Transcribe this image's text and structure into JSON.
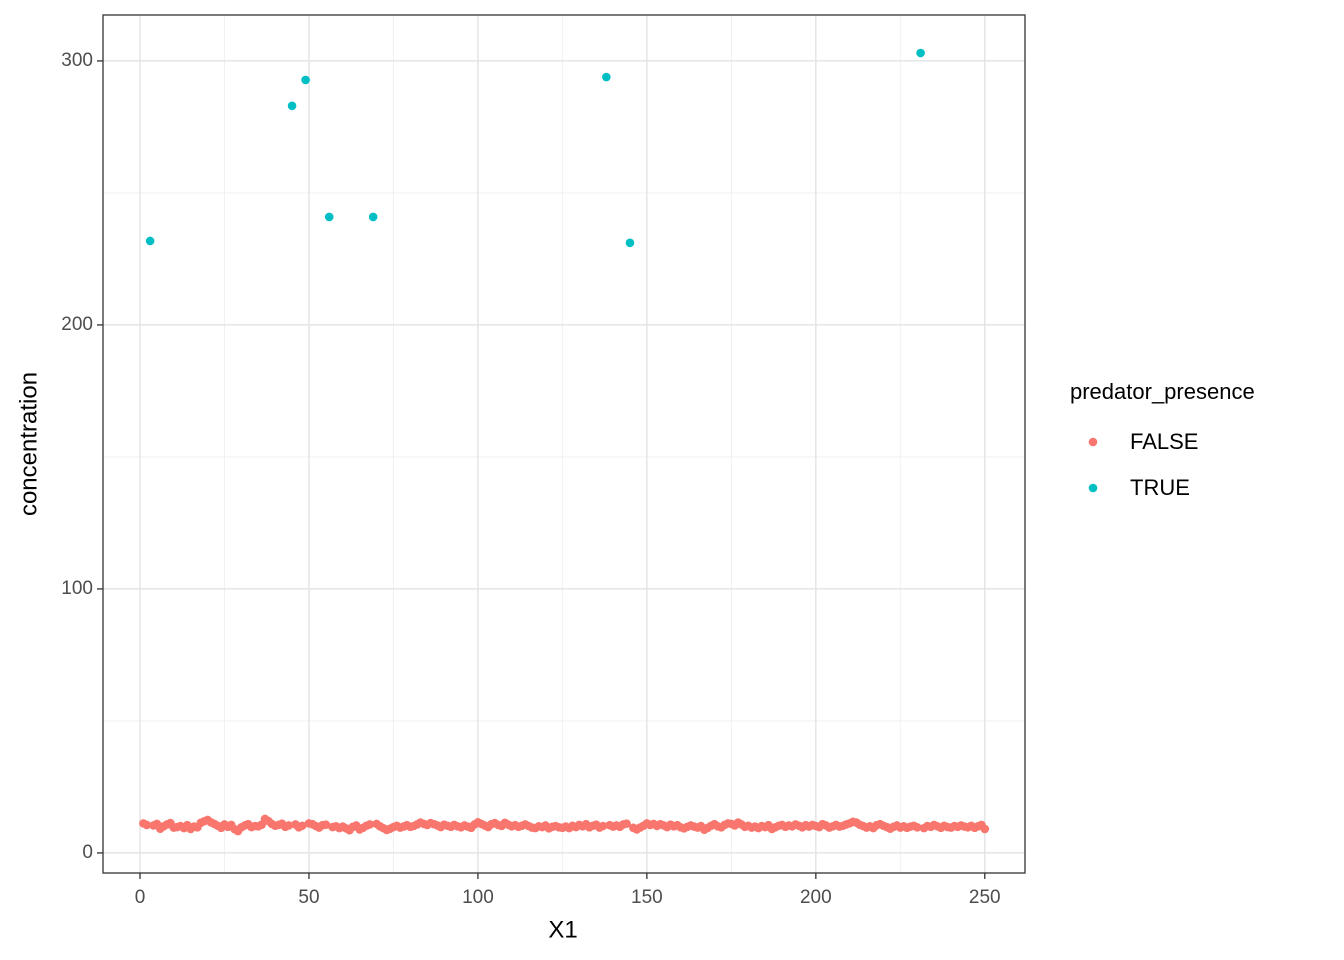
{
  "chart_data": {
    "type": "scatter",
    "x_label": "X1",
    "y_label": "concentration",
    "legend_title": "predator_presence",
    "legend_position": "right",
    "grid": true,
    "xlim": [
      -10.95,
      261.9
    ],
    "ylim": [
      -7.6,
      317.4
    ],
    "xticks": [
      0,
      50,
      100,
      150,
      200,
      250
    ],
    "yticks": [
      0,
      100,
      200,
      300
    ],
    "x_minor_ticks": [
      25,
      75,
      125,
      175,
      225
    ],
    "y_minor_ticks": [
      50,
      150,
      250
    ],
    "series": [
      {
        "name": "FALSE",
        "color": "#F8766D",
        "x": [
          1,
          2,
          4,
          5,
          6,
          7,
          8,
          9,
          10,
          11,
          12,
          13,
          14,
          15,
          16,
          17,
          18,
          19,
          20,
          21,
          22,
          23,
          24,
          25,
          26,
          27,
          28,
          29,
          30,
          31,
          32,
          33,
          34,
          35,
          36,
          37,
          38,
          39,
          40,
          41,
          42,
          43,
          44,
          46,
          47,
          48,
          50,
          51,
          52,
          53,
          54,
          55,
          57,
          58,
          59,
          60,
          61,
          62,
          63,
          64,
          65,
          66,
          67,
          68,
          70,
          71,
          72,
          73,
          74,
          75,
          76,
          77,
          78,
          79,
          80,
          81,
          82,
          83,
          84,
          85,
          86,
          87,
          88,
          89,
          90,
          91,
          92,
          93,
          94,
          95,
          96,
          97,
          98,
          99,
          100,
          101,
          102,
          103,
          104,
          105,
          106,
          107,
          108,
          109,
          110,
          111,
          112,
          113,
          114,
          115,
          116,
          117,
          118,
          119,
          120,
          121,
          122,
          123,
          124,
          125,
          126,
          127,
          128,
          129,
          130,
          131,
          132,
          133,
          134,
          135,
          136,
          137,
          139,
          140,
          141,
          142,
          143,
          144,
          146,
          147,
          148,
          149,
          150,
          151,
          152,
          153,
          154,
          155,
          156,
          157,
          158,
          159,
          160,
          161,
          162,
          163,
          164,
          165,
          166,
          167,
          168,
          169,
          170,
          171,
          172,
          173,
          174,
          175,
          176,
          177,
          178,
          179,
          180,
          181,
          182,
          183,
          184,
          185,
          186,
          187,
          188,
          189,
          190,
          191,
          192,
          193,
          194,
          195,
          196,
          197,
          198,
          199,
          200,
          201,
          202,
          203,
          204,
          205,
          206,
          207,
          208,
          209,
          210,
          211,
          212,
          213,
          214,
          215,
          216,
          217,
          218,
          219,
          220,
          221,
          222,
          223,
          224,
          225,
          226,
          227,
          228,
          229,
          230,
          232,
          233,
          234,
          235,
          236,
          237,
          238,
          239,
          240,
          241,
          242,
          243,
          244,
          245,
          246,
          247,
          248,
          249,
          250
        ],
        "values": [
          11.2,
          10.6,
          10.4,
          11.0,
          9.2,
          10.1,
          10.8,
          11.3,
          9.6,
          9.8,
          10.2,
          9.4,
          10.5,
          9.1,
          10.0,
          9.7,
          11.4,
          12.0,
          12.5,
          11.6,
          11.0,
          10.3,
          9.5,
          10.8,
          9.9,
          10.6,
          9.0,
          8.3,
          9.7,
          10.4,
          10.9,
          9.8,
          10.2,
          10.1,
          10.7,
          12.9,
          12.1,
          11.0,
          10.3,
          10.6,
          11.1,
          9.9,
          10.4,
          10.8,
          9.7,
          10.3,
          11.2,
          10.9,
          10.2,
          9.6,
          10.5,
          10.7,
          9.8,
          10.1,
          9.4,
          10.0,
          9.3,
          8.6,
          9.9,
          10.4,
          8.9,
          9.5,
          10.3,
          10.8,
          11.0,
          10.1,
          9.4,
          8.7,
          9.2,
          9.8,
          10.3,
          9.6,
          10.0,
          10.5,
          9.9,
          10.2,
          10.8,
          11.5,
          11.0,
          10.6,
          11.3,
          10.9,
          10.4,
          9.8,
          10.7,
          10.3,
          9.9,
          10.6,
          10.1,
          9.7,
          10.4,
          10.0,
          9.5,
          10.8,
          11.6,
          11.0,
          10.4,
          9.8,
          10.9,
          11.3,
          10.6,
          10.2,
          11.4,
          10.7,
          10.1,
          10.5,
          9.9,
          10.3,
          10.8,
          10.2,
          9.6,
          9.4,
          10.1,
          9.8,
          10.4,
          9.3,
          9.9,
          10.2,
          9.7,
          9.5,
          10.0,
          9.4,
          10.3,
          9.8,
          10.6,
          10.1,
          10.9,
          9.7,
          10.3,
          10.7,
          9.6,
          10.2,
          10.5,
          10.0,
          10.4,
          9.9,
          10.8,
          11.1,
          9.5,
          8.9,
          9.6,
          10.3,
          11.2,
          10.6,
          11.0,
          10.2,
          10.9,
          10.4,
          9.8,
          10.7,
          10.1,
          10.5,
          9.7,
          9.3,
          9.9,
          10.4,
          10.0,
          9.6,
          10.2,
          8.8,
          9.5,
          10.3,
          10.9,
          10.1,
          9.7,
          10.6,
          11.2,
          11.0,
          10.4,
          11.5,
          10.8,
          9.9,
          10.3,
          9.6,
          10.0,
          9.4,
          10.2,
          9.8,
          10.5,
          9.1,
          9.7,
          10.3,
          10.6,
          9.9,
          10.4,
          10.1,
          10.8,
          10.3,
          9.7,
          10.5,
          10.0,
          10.6,
          10.2,
          9.8,
          10.9,
          10.4,
          9.6,
          10.1,
          10.6,
          10.0,
          10.3,
          10.8,
          11.2,
          11.8,
          11.5,
          10.7,
          10.2,
          9.6,
          10.1,
          9.4,
          10.5,
          10.9,
          10.3,
          9.8,
          9.2,
          9.9,
          10.4,
          9.6,
          10.1,
          9.5,
          10.0,
          10.3,
          9.7,
          9.4,
          10.2,
          9.9,
          10.6,
          10.1,
          9.5,
          10.3,
          9.8,
          9.6,
          10.2,
          9.9,
          10.4,
          10.0,
          9.7,
          10.3,
          9.5,
          10.1,
          10.6,
          9.1
        ]
      },
      {
        "name": "TRUE",
        "color": "#00BFC4",
        "x": [
          3,
          45,
          49,
          56,
          69,
          138,
          145,
          231
        ],
        "values": [
          231.8,
          283,
          292.8,
          240.9,
          240.9,
          293.9,
          231.1,
          303
        ]
      }
    ]
  }
}
